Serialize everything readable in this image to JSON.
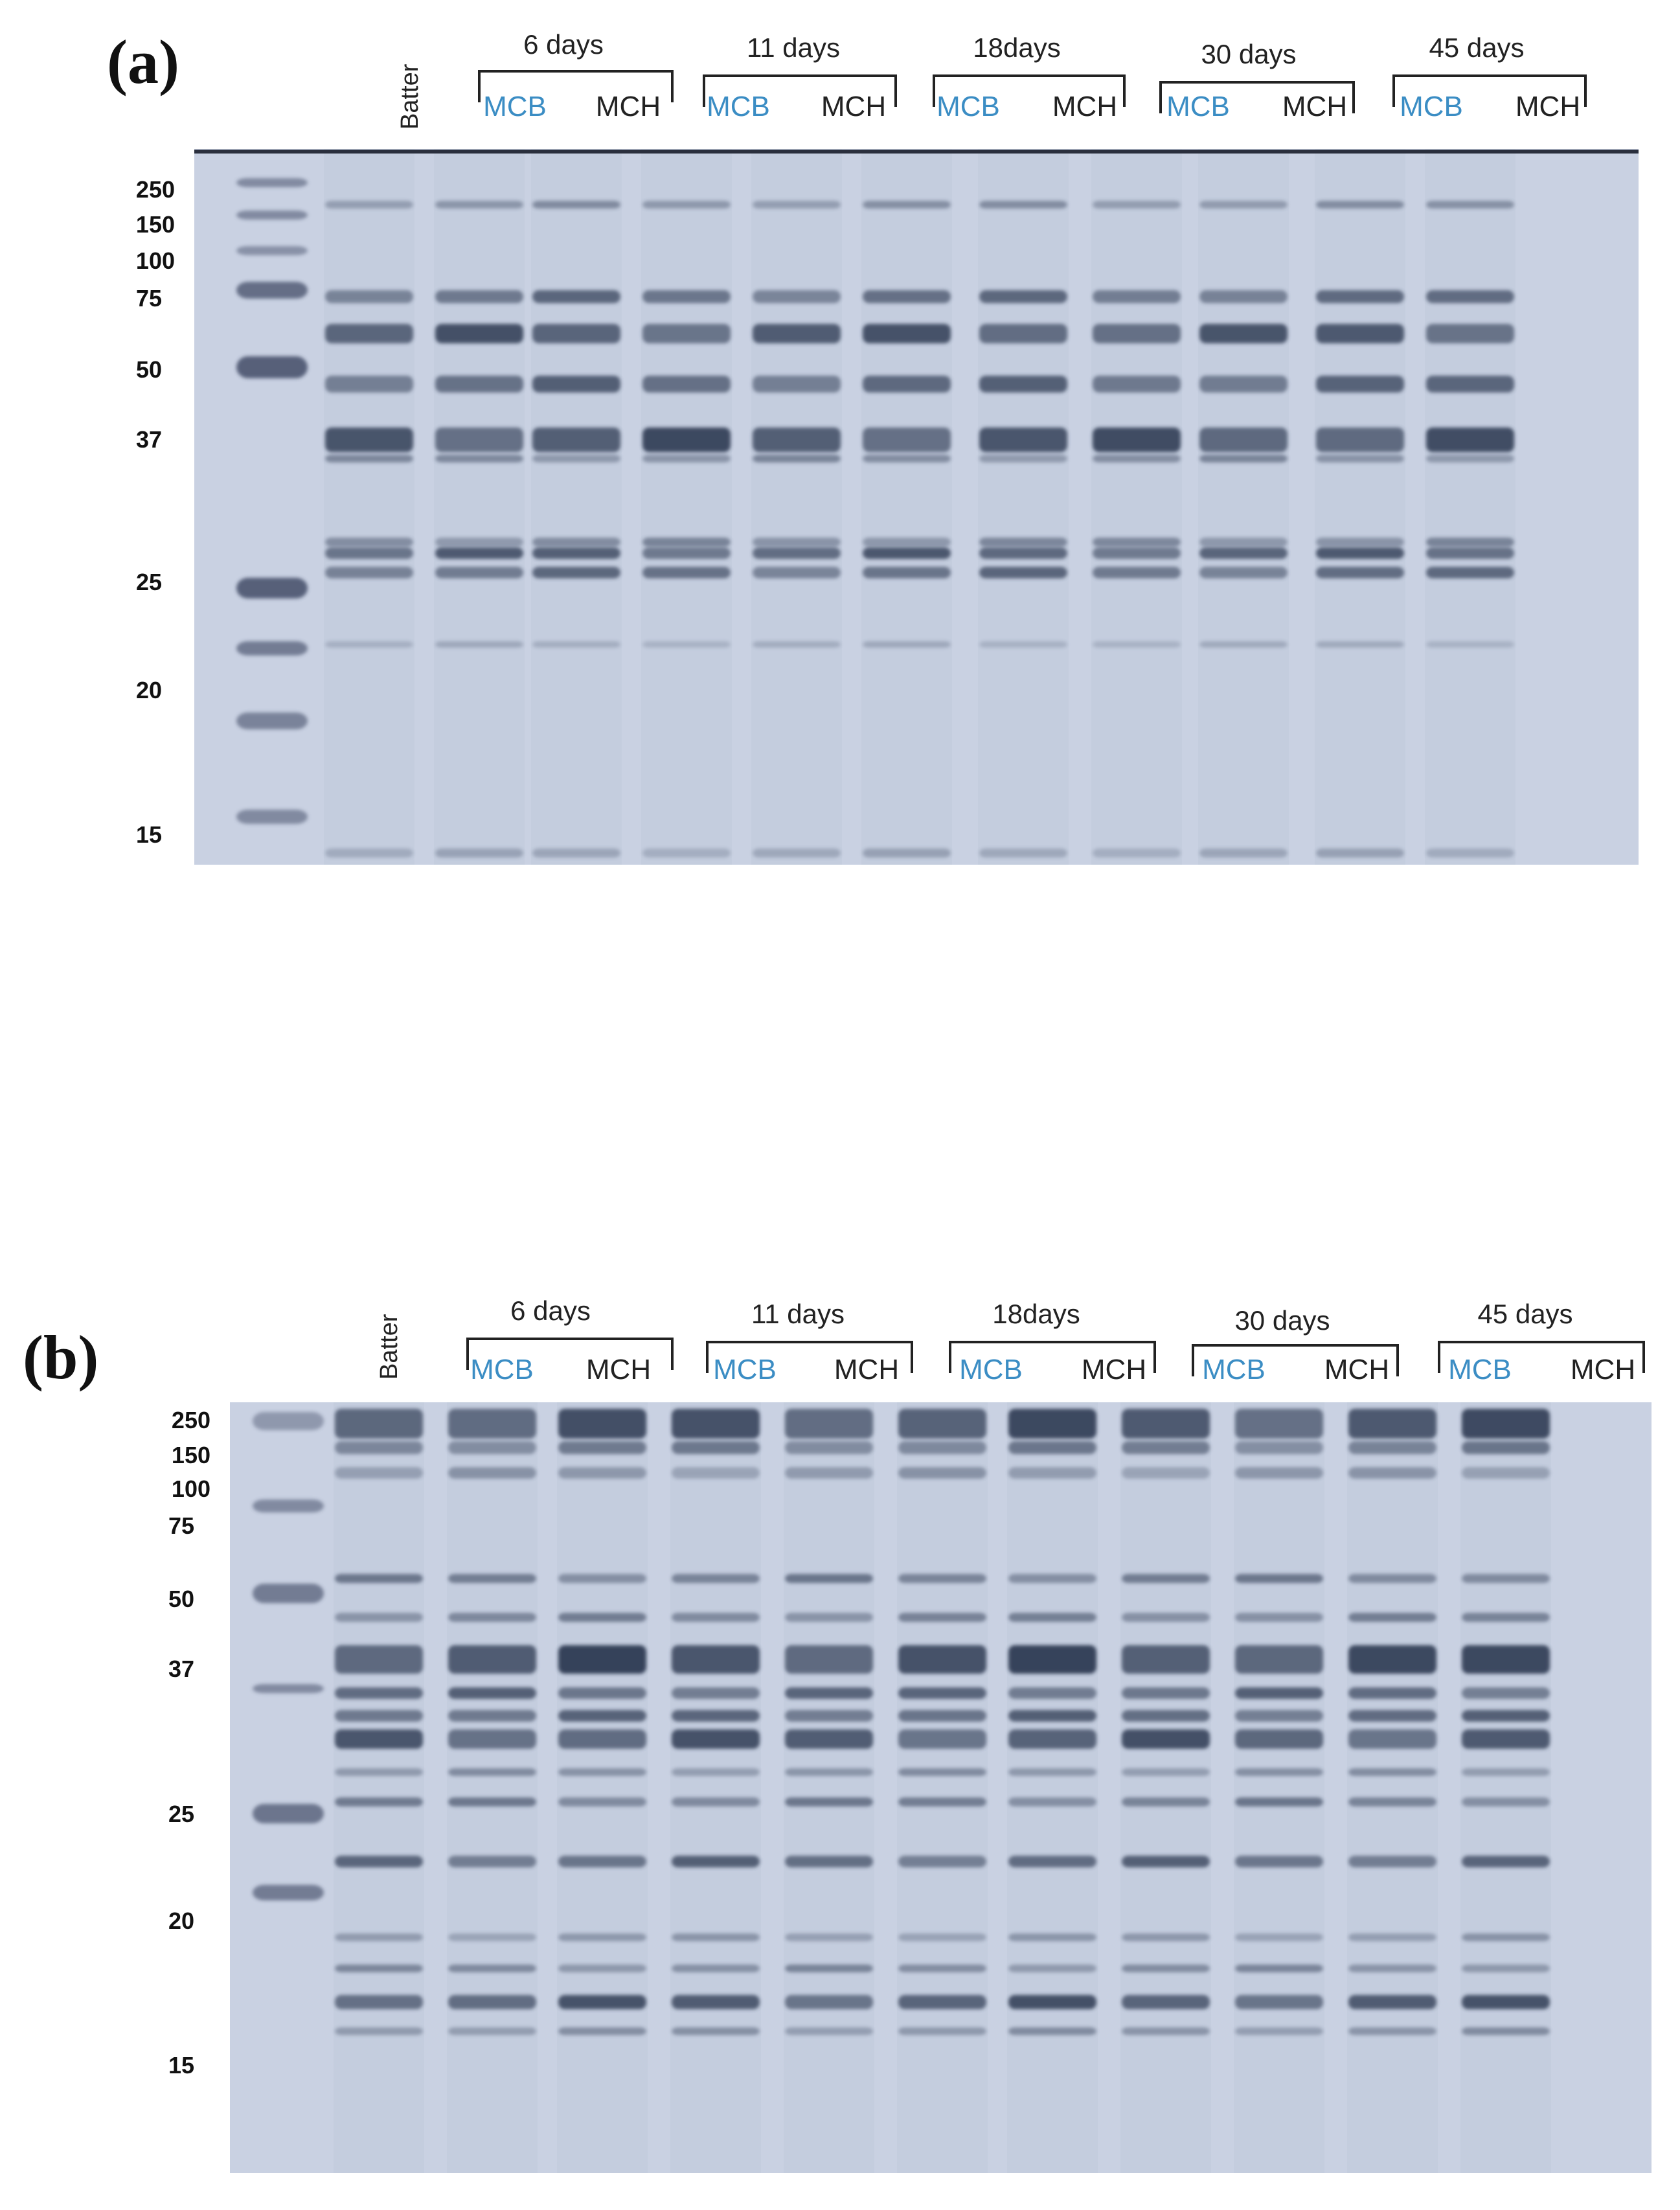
{
  "panels": [
    {
      "label": "(a)",
      "batter_label": "Batter",
      "groups": [
        {
          "title": "6 days",
          "lanes": [
            "MCB",
            "MCH"
          ]
        },
        {
          "title": "11 days",
          "lanes": [
            "MCB",
            "MCH"
          ]
        },
        {
          "title": "18days",
          "lanes": [
            "MCB",
            "MCH"
          ]
        },
        {
          "title": "30 days",
          "lanes": [
            "MCB",
            "MCH"
          ]
        },
        {
          "title": "45 days",
          "lanes": [
            "MCB",
            "MCH"
          ]
        }
      ],
      "markers": [
        "250",
        "150",
        "100",
        "75",
        "50",
        "37",
        "25",
        "20",
        "15"
      ]
    },
    {
      "label": "(b)",
      "batter_label": "Batter",
      "groups": [
        {
          "title": "6 days",
          "lanes": [
            "MCB",
            "MCH"
          ]
        },
        {
          "title": "11 days",
          "lanes": [
            "MCB",
            "MCH"
          ]
        },
        {
          "title": "18days",
          "lanes": [
            "MCB",
            "MCH"
          ]
        },
        {
          "title": "30 days",
          "lanes": [
            "MCB",
            "MCH"
          ]
        },
        {
          "title": "45 days",
          "lanes": [
            "MCB",
            "MCH"
          ]
        }
      ],
      "markers": [
        "250",
        "150",
        "100",
        "75",
        "50",
        "37",
        "25",
        "20",
        "15"
      ]
    }
  ],
  "colors": {
    "lane_mcb_label": "#3b8dc4",
    "gel_background": "#c9d1e2",
    "band": "#2f3a52"
  }
}
